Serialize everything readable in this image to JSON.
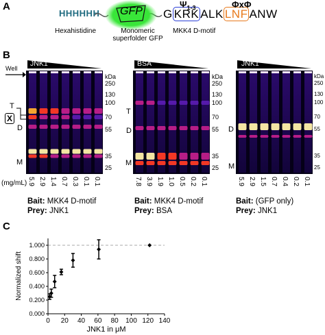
{
  "panelA": {
    "letter": "A",
    "his_tag": "HHHHHH",
    "gfp": "GFP",
    "seq_g": "G",
    "seq_krk": "KRK",
    "seq_alk": "ALK",
    "seq_lnf": "LNF",
    "seq_anw": "ANW",
    "psi": "Ψ",
    "psi_sub": "1-3",
    "phixphi": "ΦxΦ",
    "label_his": "Hexahistidine",
    "label_gfp1": "Monomeric",
    "label_gfp2": "superfolder GFP",
    "label_motif": "MKK4 D-motif",
    "colors": {
      "his": "#1f6b80",
      "gfp": "#39e639",
      "krk_border": "#2b3fd6",
      "lnf_border": "#e87a1c",
      "lnf_text": "#e87a1c"
    }
  },
  "panelB": {
    "letter": "B",
    "well": "Well",
    "conc_unit": "(mg/mL)",
    "band_T": "T",
    "band_X": "X",
    "band_D": "D",
    "band_M": "M",
    "kda": "kDa",
    "markers": [
      "250",
      "130",
      "100",
      "70",
      "55",
      "35",
      "25"
    ],
    "gels": [
      {
        "title": "JNK1",
        "lanes": [
          "5.9",
          "2.9",
          "1.4",
          "0.7",
          "0.3",
          "0.1",
          "0.1"
        ],
        "bait_label": "Bait:",
        "bait": "MKK4 D-motif",
        "prey_label": "Prey:",
        "prey": "JNK1"
      },
      {
        "title": "BSA",
        "lanes": [
          "7.8",
          "3.9",
          "1.9",
          "1.0",
          "0.5",
          "0.2",
          "0.1"
        ],
        "bait_label": "Bait:",
        "bait": "MKK4 D-motif",
        "prey_label": "Prey:",
        "prey": "BSA"
      },
      {
        "title": "JNK1",
        "lanes": [
          "5.9",
          "2.9",
          "1.5",
          "0.7",
          "0.4",
          "0.2",
          "0.1"
        ],
        "bait_label": "Bait:",
        "bait": "(GFP only)",
        "prey_label": "Prey:",
        "prey": "JNK1"
      }
    ]
  },
  "panelC": {
    "letter": "C",
    "chart_data": {
      "type": "scatter",
      "xlabel": "JNK1 in μM",
      "ylabel": "Normalized shift",
      "xlim": [
        0,
        140
      ],
      "ylim": [
        0,
        1.1
      ],
      "xticks": [
        "0",
        "20",
        "40",
        "60",
        "80",
        "100",
        "120",
        "140"
      ],
      "yticks": [
        "0.000",
        "0.200",
        "0.400",
        "0.600",
        "0.800",
        "1.000"
      ],
      "reference_line": 1.0,
      "points": [
        {
          "x": 2,
          "y": 0.25,
          "err": 0.04
        },
        {
          "x": 4,
          "y": 0.3,
          "err": 0.06
        },
        {
          "x": 8,
          "y": 0.47,
          "err": 0.09
        },
        {
          "x": 16,
          "y": 0.61,
          "err": 0.04
        },
        {
          "x": 30,
          "y": 0.78,
          "err": 0.1
        },
        {
          "x": 61,
          "y": 0.94,
          "err": 0.14
        },
        {
          "x": 122,
          "y": 1.0,
          "err": 0.0
        }
      ]
    }
  }
}
